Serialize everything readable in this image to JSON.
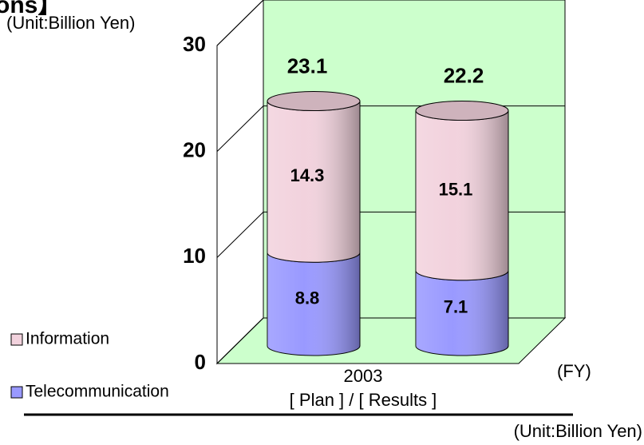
{
  "chart_data": {
    "type": "stacked_cylinder",
    "title_fragment": "ons】",
    "unit_top": "(Unit:Billion Yen)",
    "unit_bottom": "(Unit:Billion Yen)",
    "x_label": "2003",
    "x_sublabel": "[ Plan ] / [ Results ]",
    "x_unit": "(FY)",
    "categories": [
      null,
      null
    ],
    "series": [
      {
        "name": "Telecommunication",
        "color": "#9999ff",
        "values": [
          8.8,
          7.1
        ]
      },
      {
        "name": "Information",
        "color": "#f2d2dd",
        "values": [
          14.3,
          15.1
        ]
      }
    ],
    "totals": [
      23.1,
      22.2
    ],
    "ylim": [
      0,
      30
    ],
    "yticks": [
      0,
      10,
      20,
      30
    ],
    "grid": true,
    "wall_color": "#ccffcc"
  }
}
